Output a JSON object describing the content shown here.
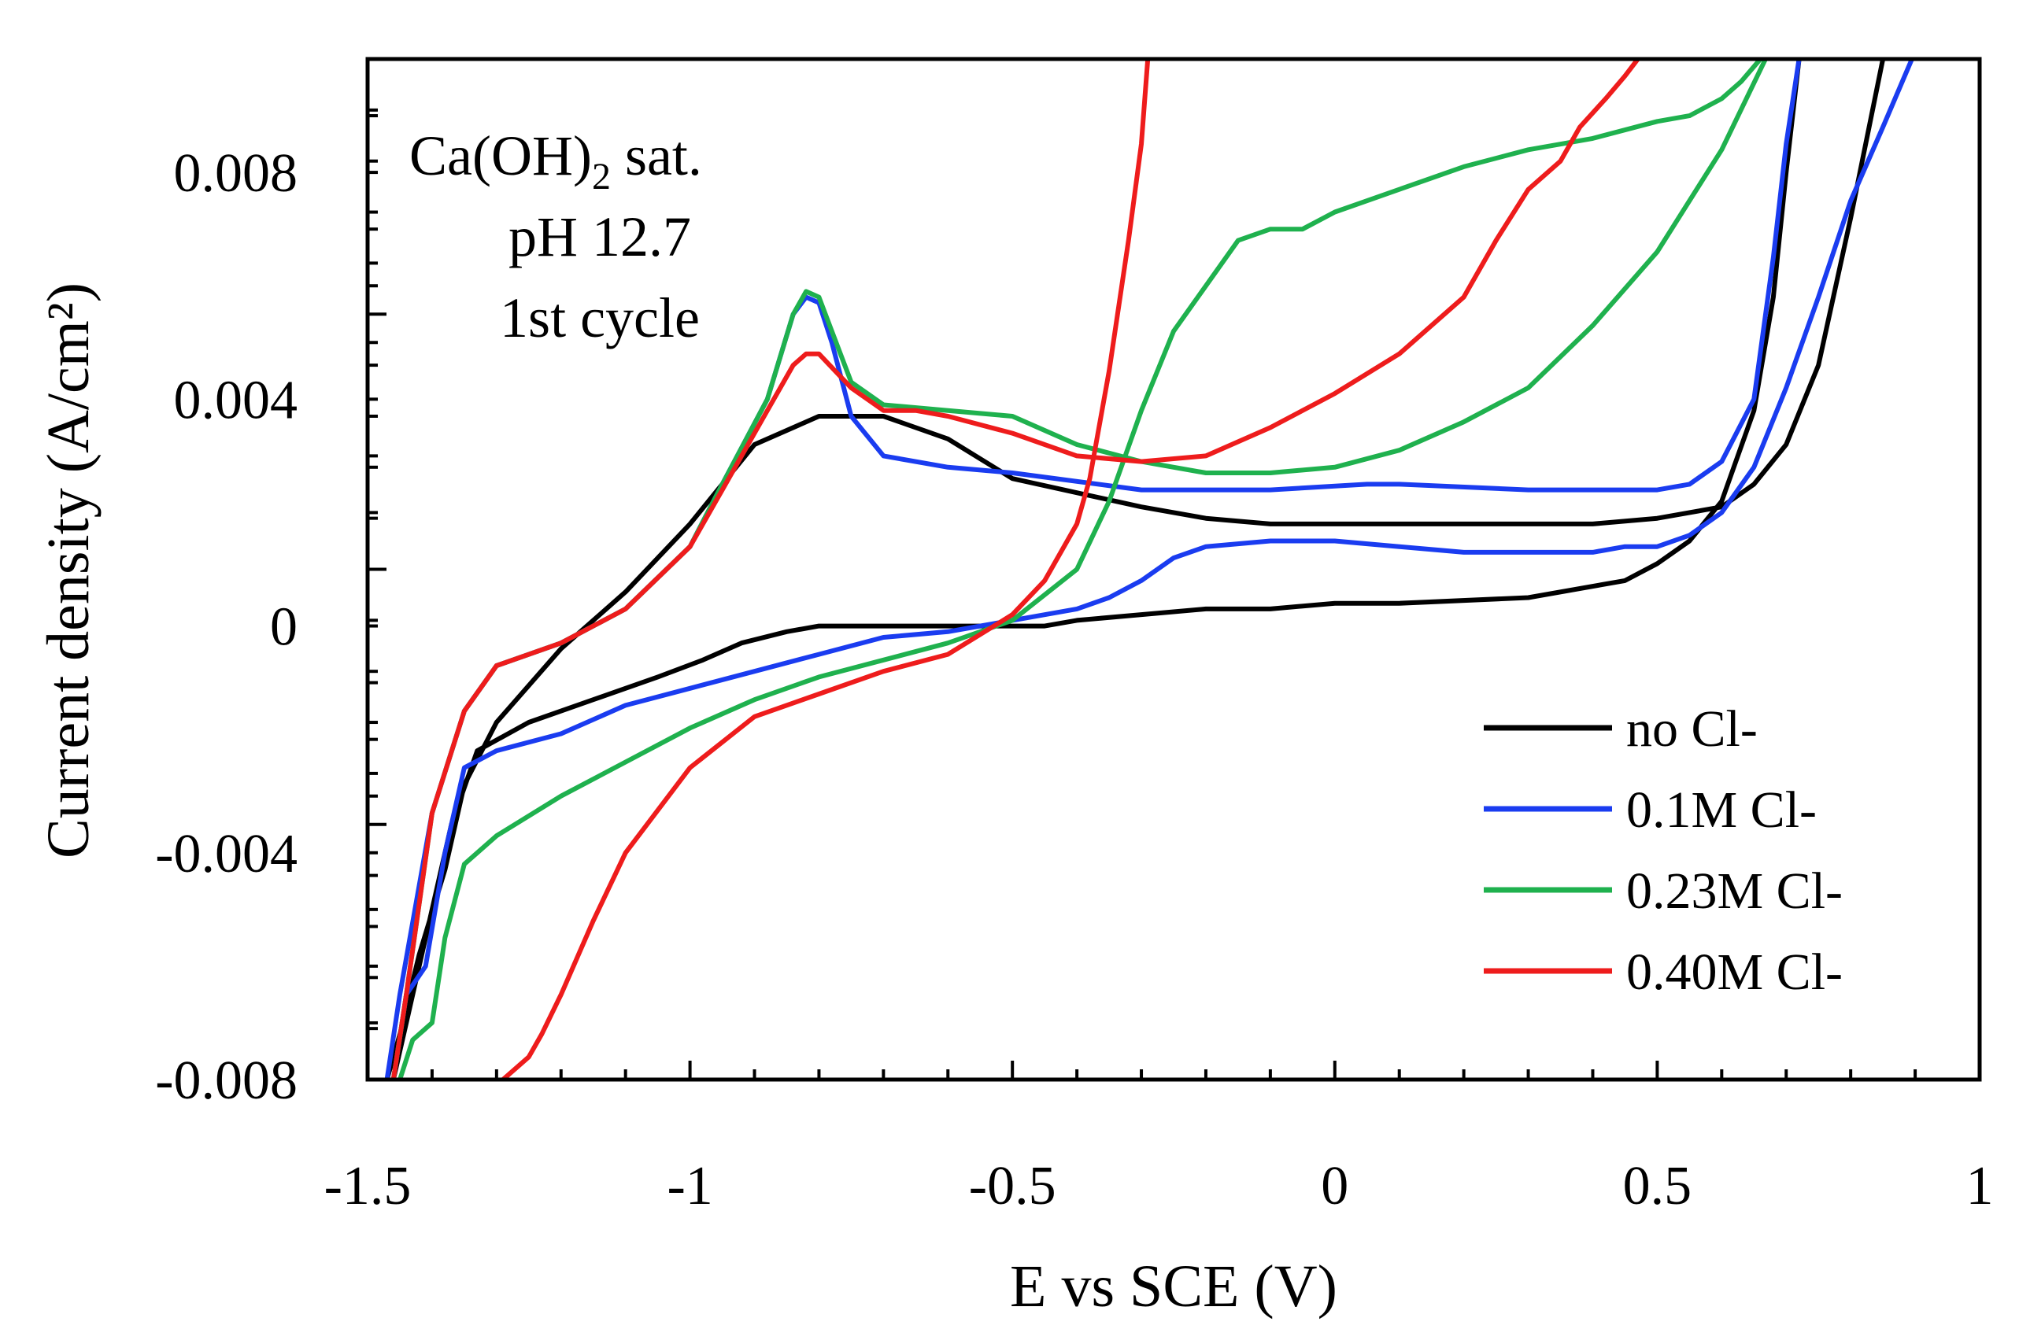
{
  "chart_data": {
    "type": "line",
    "title": "",
    "xlabel": "E vs SCE (V)",
    "ylabel": "Current density (A/cm²)",
    "xlim": [
      -1.5,
      1.0
    ],
    "ylim": [
      -0.008,
      0.01
    ],
    "x_ticks": [
      -1.5,
      -1,
      -0.5,
      0,
      0.5,
      1
    ],
    "x_tick_labels": [
      "-1.5",
      "-1",
      "-0.5",
      "0",
      "0.5",
      "1"
    ],
    "y_ticks": [
      -0.008,
      -0.004,
      0,
      0.004,
      0.008
    ],
    "y_tick_labels": [
      "-0.008",
      "-0.004",
      "0",
      "0.004",
      "0.008"
    ],
    "grid": false,
    "legend_position": "bottom-right",
    "annotation": {
      "line1_main": "Ca(OH)",
      "line1_sub": "2",
      "line1_tail": " sat.",
      "line2": "pH 12.7",
      "line3": "1st cycle"
    },
    "series": [
      {
        "name": "no Cl-",
        "color": "#000000",
        "x": [
          -1.46,
          -1.44,
          -1.4,
          -1.37,
          -1.33,
          -1.25,
          -1.15,
          -1.05,
          -0.98,
          -0.92,
          -0.85,
          -0.8,
          -0.75,
          -0.7,
          -0.6,
          -0.5,
          -0.45,
          -0.4,
          -0.3,
          -0.2,
          -0.1,
          0,
          0.1,
          0.3,
          0.45,
          0.5,
          0.55,
          0.6,
          0.65,
          0.68,
          0.7,
          0.72,
          0.72,
          0.75,
          0.8,
          0.85,
          null,
          0.85,
          0.8,
          0.75,
          0.7,
          0.65,
          0.6,
          0.5,
          0.4,
          0.2,
          0,
          -0.1,
          -0.2,
          -0.3,
          -0.5,
          -0.6,
          -0.7,
          -0.8,
          -0.9,
          -1.0,
          -1.1,
          -1.2,
          -1.3,
          -1.35,
          -1.38,
          -1.42,
          -1.45,
          -1.47
        ],
        "y": [
          -0.008,
          -0.007,
          -0.005,
          -0.0035,
          -0.0022,
          -0.0017,
          -0.0013,
          -0.0009,
          -0.0006,
          -0.0003,
          -0.0001,
          0,
          0,
          0,
          0,
          0,
          0,
          0.0001,
          0.0002,
          0.0003,
          0.0003,
          0.0004,
          0.0004,
          0.0005,
          0.0008,
          0.0011,
          0.0015,
          0.0022,
          0.0038,
          0.0058,
          0.008,
          0.01,
          null,
          null,
          null,
          null,
          null,
          0.01,
          0.0072,
          0.0046,
          0.0032,
          0.0025,
          0.0021,
          0.0019,
          0.0018,
          0.0018,
          0.0018,
          0.0018,
          0.0019,
          0.0021,
          0.0026,
          0.0033,
          0.0037,
          0.0037,
          0.0032,
          0.0018,
          0.0006,
          -0.0004,
          -0.0017,
          -0.0028,
          -0.0043,
          -0.0058,
          -0.0072,
          -0.008
        ]
      },
      {
        "name": "0.1M Cl-",
        "color": "#1a3cf0",
        "x": [
          -1.46,
          -1.44,
          -1.41,
          -1.38,
          -1.35,
          -1.3,
          -1.2,
          -1.1,
          -1.0,
          -0.9,
          -0.8,
          -0.7,
          -0.6,
          -0.5,
          -0.4,
          -0.35,
          -0.3,
          -0.25,
          -0.2,
          -0.1,
          0,
          0.1,
          0.2,
          0.3,
          0.4,
          0.45,
          0.5,
          0.55,
          0.6,
          0.65,
          0.7,
          0.75,
          0.8,
          0.85,
          0.88,
          0.895,
          null,
          0.72,
          0.7,
          0.68,
          0.65,
          0.6,
          0.55,
          0.5,
          0.45,
          0.3,
          0.1,
          0.05,
          -0.1,
          -0.3,
          -0.5,
          -0.6,
          -0.7,
          -0.75,
          -0.78,
          -0.8,
          -0.82,
          -0.84,
          -0.88,
          -0.95,
          -1.0,
          -1.1,
          -1.2,
          -1.3,
          -1.35,
          -1.4,
          -1.45,
          -1.47
        ],
        "y": [
          -0.008,
          -0.0065,
          -0.006,
          -0.004,
          -0.0025,
          -0.0022,
          -0.0019,
          -0.0014,
          -0.0011,
          -0.0008,
          -0.0005,
          -0.0002,
          -0.0001,
          0.0001,
          0.0003,
          0.0005,
          0.0008,
          0.0012,
          0.0014,
          0.0015,
          0.0015,
          0.0014,
          0.0013,
          0.0013,
          0.0013,
          0.0014,
          0.0014,
          0.0016,
          0.002,
          0.0028,
          0.0042,
          0.0058,
          0.0075,
          0.0088,
          0.0096,
          0.01,
          null,
          0.01,
          0.0085,
          0.0065,
          0.004,
          0.0029,
          0.0025,
          0.0024,
          0.0024,
          0.0024,
          0.0025,
          0.0025,
          0.0024,
          0.0024,
          0.0027,
          0.0028,
          0.003,
          0.0037,
          0.005,
          0.0057,
          0.0058,
          0.0055,
          0.004,
          0.0025,
          0.0014,
          0.0003,
          -0.0003,
          -0.0007,
          -0.0015,
          -0.0033,
          -0.0065,
          -0.008
        ]
      },
      {
        "name": "0.23M Cl-",
        "color": "#1fb14e",
        "x": [
          -1.45,
          -1.43,
          -1.4,
          -1.38,
          -1.35,
          -1.3,
          -1.2,
          -1.1,
          -1.0,
          -0.9,
          -0.8,
          -0.7,
          -0.6,
          -0.5,
          -0.4,
          -0.35,
          -0.3,
          -0.25,
          -0.2,
          -0.15,
          -0.1,
          -0.05,
          0,
          0.1,
          0.2,
          0.3,
          0.4,
          0.5,
          0.55,
          0.6,
          0.63,
          0.66,
          0.668,
          null,
          0.668,
          0.6,
          0.5,
          0.4,
          0.3,
          0.2,
          0.1,
          0,
          -0.1,
          -0.2,
          -0.3,
          -0.4,
          -0.5,
          -0.6,
          -0.7,
          -0.75,
          -0.78,
          -0.8,
          -0.82,
          -0.84,
          -0.88,
          -0.95,
          -1.0,
          -1.1,
          -1.2,
          -1.3,
          -1.35,
          -1.4,
          -1.44,
          -1.46
        ],
        "y": [
          -0.008,
          -0.0073,
          -0.007,
          -0.0055,
          -0.0042,
          -0.0037,
          -0.003,
          -0.0024,
          -0.0018,
          -0.0013,
          -0.0009,
          -0.0006,
          -0.0003,
          0.0001,
          0.001,
          0.0022,
          0.0038,
          0.0052,
          0.006,
          0.0068,
          0.007,
          0.007,
          0.0073,
          0.0077,
          0.0081,
          0.0084,
          0.0086,
          0.0089,
          0.009,
          0.0093,
          0.0096,
          0.01,
          0.01,
          null,
          0.01,
          0.0084,
          0.0066,
          0.0053,
          0.0042,
          0.0036,
          0.0031,
          0.0028,
          0.0027,
          0.0027,
          0.0029,
          0.0032,
          0.0037,
          0.0038,
          0.0039,
          0.0043,
          0.0052,
          0.0058,
          0.0059,
          0.0055,
          0.004,
          0.0025,
          0.0014,
          0.0003,
          -0.0003,
          -0.0007,
          -0.0015,
          -0.0033,
          -0.0065,
          -0.008
        ]
      },
      {
        "name": "0.40M Cl-",
        "color": "#ee1c1c",
        "x": [
          -1.29,
          -1.27,
          -1.25,
          -1.23,
          -1.2,
          -1.15,
          -1.1,
          -1.0,
          -0.9,
          -0.8,
          -0.7,
          -0.6,
          -0.5,
          -0.45,
          -0.4,
          -0.38,
          -0.35,
          -0.32,
          -0.3,
          -0.29,
          null,
          0.47,
          0.45,
          0.42,
          0.38,
          0.35,
          0.3,
          0.25,
          0.2,
          0.1,
          0,
          -0.1,
          -0.2,
          -0.3,
          -0.4,
          -0.5,
          -0.6,
          -0.65,
          -0.7,
          -0.75,
          -0.8,
          -0.82,
          -0.84,
          -0.88,
          -0.95,
          -1.0,
          -1.1,
          -1.2,
          -1.3,
          -1.35,
          -1.4,
          -1.44,
          -1.46
        ],
        "y": [
          -0.008,
          -0.0078,
          -0.0076,
          -0.0072,
          -0.0065,
          -0.0052,
          -0.004,
          -0.0025,
          -0.0016,
          -0.0012,
          -0.0008,
          -0.0005,
          0.0002,
          0.0008,
          0.0018,
          0.0026,
          0.0045,
          0.0068,
          0.0085,
          0.01,
          null,
          0.01,
          0.0097,
          0.0093,
          0.0088,
          0.0082,
          0.0077,
          0.0068,
          0.0058,
          0.0048,
          0.0041,
          0.0035,
          0.003,
          0.0029,
          0.003,
          0.0034,
          0.0037,
          0.0038,
          0.0038,
          0.0042,
          0.0048,
          0.0048,
          0.0046,
          0.0038,
          0.0024,
          0.0014,
          0.0003,
          -0.0003,
          -0.0007,
          -0.0015,
          -0.0033,
          -0.0065,
          -0.008
        ]
      }
    ]
  }
}
